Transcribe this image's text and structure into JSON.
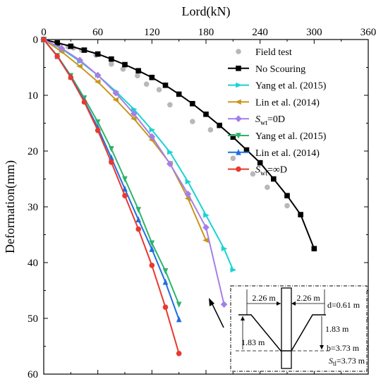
{
  "chart_data": {
    "type": "line",
    "xlabel": "Lord(kN)",
    "ylabel": "Deformation(mm)",
    "xlim": [
      0,
      360
    ],
    "ylim": [
      0,
      60
    ],
    "y_inverted": true,
    "x_axis_position": "top",
    "xticks": [
      "0",
      "60",
      "120",
      "180",
      "240",
      "300",
      "360"
    ],
    "yticks": [
      "0",
      "10",
      "20",
      "30",
      "40",
      "50",
      "60"
    ],
    "legend_placement": "top-right",
    "series": [
      {
        "name": "Field test",
        "sub": "",
        "tail": "",
        "color": "#b8b8b8",
        "marker": "circle",
        "line": false,
        "x": [
          18,
          27,
          33,
          42,
          58,
          75,
          88,
          104,
          114,
          128,
          140,
          165,
          185,
          210,
          232,
          248,
          270
        ],
        "y": [
          1.0,
          1.3,
          1.5,
          1.9,
          2.8,
          4.4,
          5.3,
          6.5,
          8.0,
          9.0,
          11.7,
          14.7,
          16.2,
          21.3,
          24.1,
          26.5,
          29.8
        ]
      },
      {
        "name": "No Scouring",
        "sub": "",
        "tail": "",
        "color": "#000000",
        "marker": "square",
        "line": true,
        "x": [
          0,
          15,
          30,
          45,
          60,
          75,
          90,
          105,
          120,
          135,
          150,
          165,
          180,
          195,
          210,
          225,
          240,
          255,
          270,
          285,
          300
        ],
        "y": [
          0,
          0.6,
          1.2,
          1.9,
          2.6,
          3.5,
          4.5,
          5.6,
          6.8,
          8.2,
          9.8,
          11.5,
          13.4,
          15.4,
          17.5,
          19.8,
          22.1,
          25.0,
          28.0,
          31.4,
          37.5
        ]
      },
      {
        "name": "Yang et al. (2015)",
        "sub": "",
        "tail": "",
        "color": "#19d3d3",
        "marker": "triangle-right",
        "line": true,
        "x": [
          0,
          20,
          40,
          60,
          80,
          100,
          120,
          140,
          160,
          180,
          200,
          210
        ],
        "y": [
          0,
          1.7,
          3.9,
          6.4,
          9.3,
          12.5,
          16.2,
          20.2,
          25.5,
          31.5,
          37.5,
          41.3
        ]
      },
      {
        "name": "Lin et al. (2014)",
        "sub": "",
        "tail": "",
        "color": "#c8961e",
        "marker": "triangle-left",
        "line": true,
        "x": [
          0,
          20,
          40,
          60,
          80,
          100,
          120,
          140,
          160,
          180
        ],
        "y": [
          0,
          2.2,
          4.8,
          7.6,
          10.8,
          14.2,
          18.0,
          22.2,
          28.5,
          36.0
        ]
      },
      {
        "name": "S",
        "sub": "wt",
        "tail": "=0D",
        "color": "#a57fe6",
        "marker": "diamond",
        "line": true,
        "x": [
          0,
          20,
          40,
          60,
          80,
          100,
          120,
          140,
          160,
          180,
          200
        ],
        "y": [
          0,
          1.6,
          3.7,
          6.4,
          9.6,
          13.3,
          17.4,
          22.3,
          27.7,
          33.7,
          47.5
        ]
      },
      {
        "name": "Yang et al. (2015)",
        "sub": "",
        "tail": "",
        "color": "#2eb36a",
        "marker": "triangle-down",
        "line": true,
        "x": [
          0,
          15,
          30,
          45,
          60,
          75,
          90,
          105,
          120,
          135,
          150
        ],
        "y": [
          0,
          2.9,
          6.5,
          10.5,
          14.8,
          19.6,
          25.0,
          30.5,
          36.5,
          41.5,
          47.5
        ]
      },
      {
        "name": "Lin et al. (2014)",
        "sub": "",
        "tail": "",
        "color": "#1e6fe0",
        "marker": "triangle-up",
        "line": true,
        "x": [
          0,
          15,
          30,
          45,
          60,
          75,
          90,
          105,
          120,
          135,
          150
        ],
        "y": [
          0,
          3.0,
          6.7,
          11.0,
          15.8,
          21.2,
          26.8,
          32.3,
          37.6,
          43.5,
          50.2
        ]
      },
      {
        "name": "S",
        "sub": "wt",
        "tail": "=∞D",
        "color": "#e8392f",
        "marker": "circle",
        "line": true,
        "x": [
          0,
          15,
          30,
          45,
          60,
          75,
          90,
          105,
          120,
          135,
          150
        ],
        "y": [
          0,
          3.0,
          6.8,
          11.2,
          16.3,
          22.0,
          28.0,
          34.0,
          40.5,
          48.0,
          56.3
        ]
      }
    ],
    "inset_labels": {
      "left_width": "2.26 m",
      "right_width": "2.26 m",
      "d": "d=0.61 m",
      "left_height": "1.83 m",
      "right_height": "1.83 m",
      "b": "b=3.73 m",
      "s_sym": "S",
      "s_sub": "tl",
      "s_val": "=3.73 m"
    }
  }
}
